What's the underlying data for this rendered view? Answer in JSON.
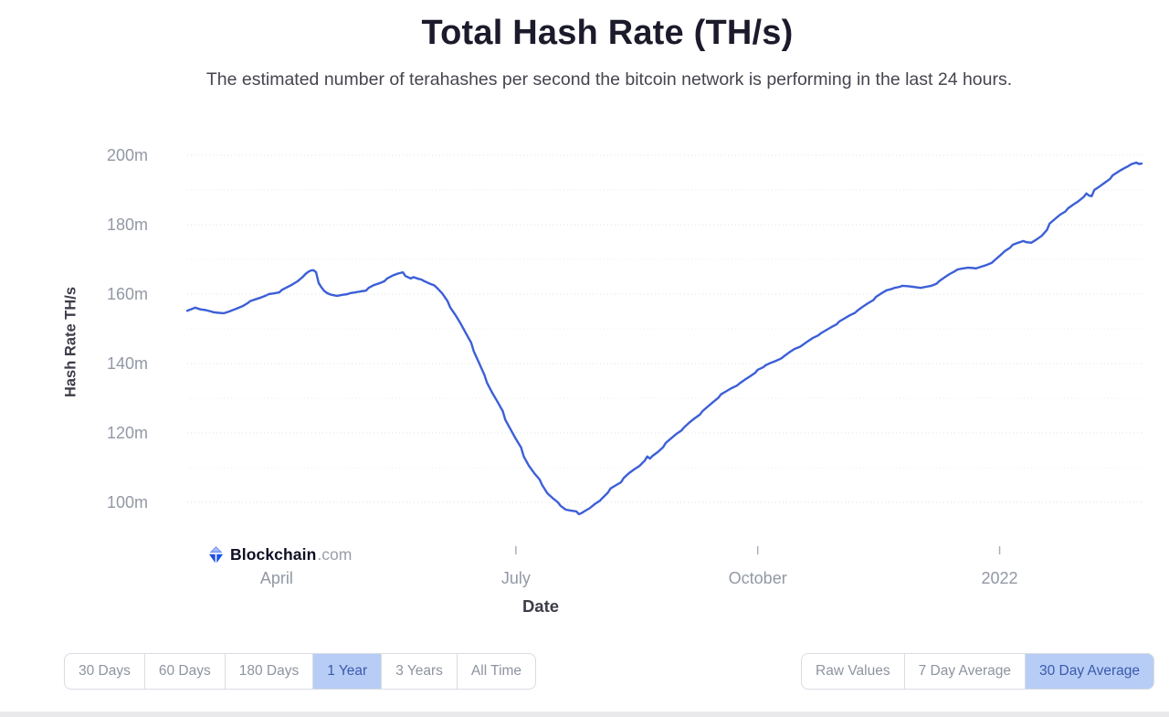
{
  "page": {
    "title": "Total Hash Rate (TH/s)",
    "subtitle": "The estimated number of terahashes per second the bitcoin network is performing in the last 24 hours."
  },
  "chart_data": {
    "type": "line",
    "title": "Total Hash Rate (TH/s)",
    "xlabel": "Date",
    "ylabel": "Hash Rate TH/s",
    "line_color": "#3c5fd7",
    "grid": "dotted horizontal gridlines",
    "legend": "none",
    "unit": "millions of TH/s",
    "ylim_m": [
      90,
      205
    ],
    "y_ticks": [
      {
        "value": 200,
        "label": "200m"
      },
      {
        "value": 180,
        "label": "180m"
      },
      {
        "value": 160,
        "label": "160m"
      },
      {
        "value": 140,
        "label": "140m"
      },
      {
        "value": 120,
        "label": "120m"
      },
      {
        "value": 100,
        "label": "100m"
      }
    ],
    "y_gridlines_major_m": [
      100,
      120,
      140,
      160,
      180,
      200
    ],
    "y_gridlines_minor_m": [
      110,
      130,
      150,
      170,
      190
    ],
    "x_axis_note": "days from late February 2021 to late February 2022",
    "x_domain_days": [
      0,
      363
    ],
    "x_ticks": [
      {
        "day": 34,
        "label": "April"
      },
      {
        "day": 125,
        "label": "July"
      },
      {
        "day": 217,
        "label": "October"
      },
      {
        "day": 309,
        "label": "2022"
      }
    ],
    "x_tick_marks_days": [
      125,
      217,
      309
    ],
    "series": [
      {
        "name": "30 Day Average Total Hash Rate",
        "unit": "m TH/s",
        "points": [
          [
            0,
            155.2
          ],
          [
            2,
            155.8
          ],
          [
            3,
            156.1
          ],
          [
            5,
            155.6
          ],
          [
            7,
            155.4
          ],
          [
            9,
            155.0
          ],
          [
            10,
            154.8
          ],
          [
            12,
            154.6
          ],
          [
            14,
            154.5
          ],
          [
            16,
            155.0
          ],
          [
            17,
            155.3
          ],
          [
            19,
            155.9
          ],
          [
            21,
            156.5
          ],
          [
            23,
            157.4
          ],
          [
            24,
            158.0
          ],
          [
            26,
            158.5
          ],
          [
            28,
            159.0
          ],
          [
            30,
            159.6
          ],
          [
            31,
            160.0
          ],
          [
            33,
            160.2
          ],
          [
            35,
            160.5
          ],
          [
            36,
            161.2
          ],
          [
            38,
            162.0
          ],
          [
            40,
            162.8
          ],
          [
            42,
            163.7
          ],
          [
            44,
            165.0
          ],
          [
            45,
            165.8
          ],
          [
            46,
            166.4
          ],
          [
            47,
            166.8
          ],
          [
            48,
            166.9
          ],
          [
            49,
            166.3
          ],
          [
            50,
            163.2
          ],
          [
            51,
            162.0
          ],
          [
            52,
            161.0
          ],
          [
            53,
            160.4
          ],
          [
            54,
            160.0
          ],
          [
            55,
            159.8
          ],
          [
            57,
            159.5
          ],
          [
            59,
            159.8
          ],
          [
            61,
            160.0
          ],
          [
            62,
            160.3
          ],
          [
            64,
            160.5
          ],
          [
            66,
            160.8
          ],
          [
            68,
            161.0
          ],
          [
            69,
            161.8
          ],
          [
            71,
            162.6
          ],
          [
            73,
            163.1
          ],
          [
            75,
            163.7
          ],
          [
            76,
            164.5
          ],
          [
            78,
            165.3
          ],
          [
            80,
            165.9
          ],
          [
            82,
            166.3
          ],
          [
            83,
            165.2
          ],
          [
            85,
            164.5
          ],
          [
            86,
            164.9
          ],
          [
            88,
            164.4
          ],
          [
            89,
            164.2
          ],
          [
            90,
            163.8
          ],
          [
            92,
            163.1
          ],
          [
            94,
            162.5
          ],
          [
            95,
            161.8
          ],
          [
            97,
            160.2
          ],
          [
            99,
            158.0
          ],
          [
            100,
            156.2
          ],
          [
            102,
            154.0
          ],
          [
            104,
            151.5
          ],
          [
            106,
            148.7
          ],
          [
            108,
            146.0
          ],
          [
            109,
            143.5
          ],
          [
            111,
            140.2
          ],
          [
            113,
            136.8
          ],
          [
            114,
            134.5
          ],
          [
            116,
            131.6
          ],
          [
            118,
            129.0
          ],
          [
            120,
            126.3
          ],
          [
            121,
            123.8
          ],
          [
            123,
            121.0
          ],
          [
            125,
            118.3
          ],
          [
            127,
            115.8
          ],
          [
            128,
            113.2
          ],
          [
            130,
            110.5
          ],
          [
            132,
            108.4
          ],
          [
            134,
            106.6
          ],
          [
            135,
            105.0
          ],
          [
            137,
            102.6
          ],
          [
            139,
            101.2
          ],
          [
            141,
            100.0
          ],
          [
            142,
            99.0
          ],
          [
            144,
            97.9
          ],
          [
            146,
            97.6
          ],
          [
            148,
            97.4
          ],
          [
            149,
            96.6
          ],
          [
            150,
            96.9
          ],
          [
            151,
            97.4
          ],
          [
            153,
            98.3
          ],
          [
            155,
            99.5
          ],
          [
            157,
            100.5
          ],
          [
            158,
            101.3
          ],
          [
            160,
            102.8
          ],
          [
            161,
            104.0
          ],
          [
            163,
            104.9
          ],
          [
            165,
            105.8
          ],
          [
            166,
            107.0
          ],
          [
            168,
            108.4
          ],
          [
            170,
            109.5
          ],
          [
            172,
            110.5
          ],
          [
            174,
            112.0
          ],
          [
            175,
            113.2
          ],
          [
            176,
            112.6
          ],
          [
            177,
            113.4
          ],
          [
            179,
            114.5
          ],
          [
            181,
            115.9
          ],
          [
            182,
            117.1
          ],
          [
            184,
            118.4
          ],
          [
            186,
            119.7
          ],
          [
            188,
            120.7
          ],
          [
            189,
            121.6
          ],
          [
            191,
            123.0
          ],
          [
            193,
            124.2
          ],
          [
            195,
            125.3
          ],
          [
            196,
            126.3
          ],
          [
            198,
            127.6
          ],
          [
            200,
            128.9
          ],
          [
            202,
            130.1
          ],
          [
            203,
            131.1
          ],
          [
            205,
            132.0
          ],
          [
            207,
            132.9
          ],
          [
            209,
            133.6
          ],
          [
            210,
            134.2
          ],
          [
            212,
            135.3
          ],
          [
            214,
            136.3
          ],
          [
            216,
            137.3
          ],
          [
            217,
            138.2
          ],
          [
            219,
            138.9
          ],
          [
            220,
            139.5
          ],
          [
            222,
            140.2
          ],
          [
            224,
            140.8
          ],
          [
            226,
            141.5
          ],
          [
            227,
            142.1
          ],
          [
            229,
            143.2
          ],
          [
            231,
            144.2
          ],
          [
            233,
            144.8
          ],
          [
            234,
            145.3
          ],
          [
            236,
            146.4
          ],
          [
            238,
            147.4
          ],
          [
            240,
            148.1
          ],
          [
            241,
            148.7
          ],
          [
            243,
            149.6
          ],
          [
            245,
            150.5
          ],
          [
            247,
            151.3
          ],
          [
            248,
            152.1
          ],
          [
            250,
            153.0
          ],
          [
            252,
            153.9
          ],
          [
            254,
            154.6
          ],
          [
            255,
            155.3
          ],
          [
            257,
            156.4
          ],
          [
            259,
            157.4
          ],
          [
            261,
            158.3
          ],
          [
            262,
            159.2
          ],
          [
            264,
            160.2
          ],
          [
            266,
            161.1
          ],
          [
            268,
            161.5
          ],
          [
            269,
            161.8
          ],
          [
            271,
            162.1
          ],
          [
            272,
            162.4
          ],
          [
            274,
            162.3
          ],
          [
            276,
            162.1
          ],
          [
            278,
            161.9
          ],
          [
            279,
            161.8
          ],
          [
            281,
            162.1
          ],
          [
            283,
            162.4
          ],
          [
            285,
            163.0
          ],
          [
            286,
            163.7
          ],
          [
            288,
            164.8
          ],
          [
            290,
            165.8
          ],
          [
            292,
            166.6
          ],
          [
            293,
            167.1
          ],
          [
            295,
            167.4
          ],
          [
            297,
            167.6
          ],
          [
            299,
            167.5
          ],
          [
            300,
            167.4
          ],
          [
            302,
            167.9
          ],
          [
            304,
            168.4
          ],
          [
            306,
            169.0
          ],
          [
            307,
            169.7
          ],
          [
            309,
            171.0
          ],
          [
            311,
            172.4
          ],
          [
            313,
            173.4
          ],
          [
            314,
            174.2
          ],
          [
            316,
            174.8
          ],
          [
            318,
            175.3
          ],
          [
            319,
            175.0
          ],
          [
            321,
            174.8
          ],
          [
            323,
            175.7
          ],
          [
            325,
            176.8
          ],
          [
            327,
            178.5
          ],
          [
            328,
            180.3
          ],
          [
            330,
            181.6
          ],
          [
            332,
            182.9
          ],
          [
            334,
            183.8
          ],
          [
            335,
            184.7
          ],
          [
            337,
            185.8
          ],
          [
            339,
            186.8
          ],
          [
            341,
            188.0
          ],
          [
            342,
            189.0
          ],
          [
            343,
            188.4
          ],
          [
            344,
            188.2
          ],
          [
            345,
            190.0
          ],
          [
            347,
            191.0
          ],
          [
            349,
            192.1
          ],
          [
            351,
            193.2
          ],
          [
            352,
            194.2
          ],
          [
            354,
            195.2
          ],
          [
            356,
            196.1
          ],
          [
            358,
            196.9
          ],
          [
            359,
            197.4
          ],
          [
            361,
            197.9
          ],
          [
            362,
            197.5
          ],
          [
            363,
            197.6
          ]
        ]
      }
    ]
  },
  "watermark": {
    "brand": "Blockchain",
    "suffix": ".com",
    "icon": "blockchain-diamond-logo",
    "icon_colors": [
      "#7b98f6",
      "#2750d8",
      "#1652f0"
    ]
  },
  "controls": {
    "range_buttons": [
      {
        "label": "30 Days",
        "active": false
      },
      {
        "label": "60 Days",
        "active": false
      },
      {
        "label": "180 Days",
        "active": false
      },
      {
        "label": "1 Year",
        "active": true
      },
      {
        "label": "3 Years",
        "active": false
      },
      {
        "label": "All Time",
        "active": false
      }
    ],
    "average_buttons": [
      {
        "label": "Raw Values",
        "active": false
      },
      {
        "label": "7 Day Average",
        "active": false
      },
      {
        "label": "30 Day Average",
        "active": true
      }
    ],
    "active_colors": {
      "background": "#b7cdf5",
      "text": "#3a5aad"
    }
  }
}
